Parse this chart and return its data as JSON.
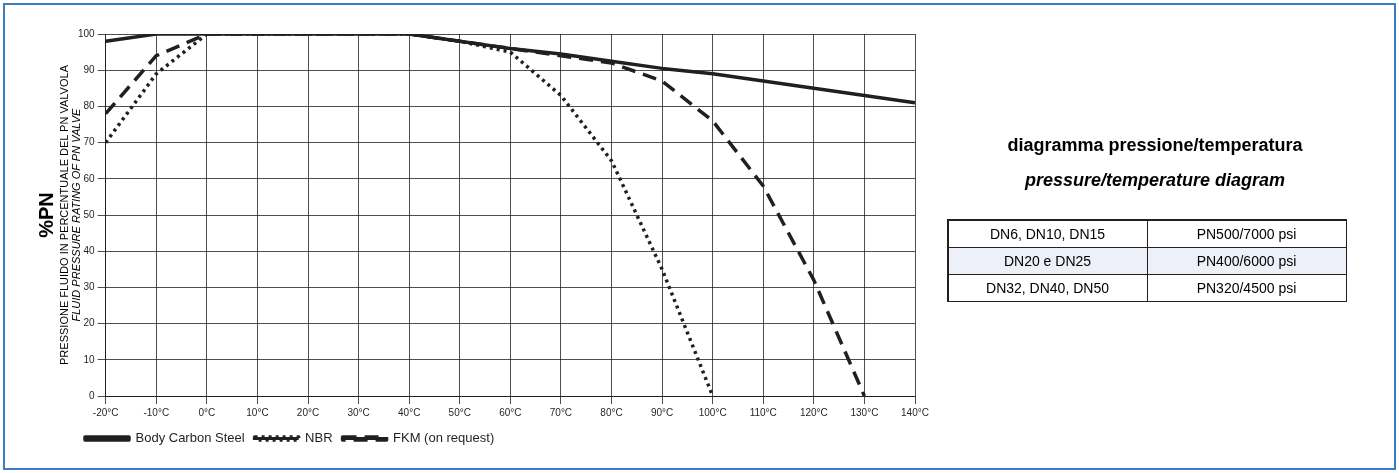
{
  "chart_data": {
    "type": "line",
    "title": "diagramma pressione/temperatura",
    "subtitle": "pressure/temperature diagram",
    "ylabel": "%PN\nPRESSIONE FLUIDO IN PERCENTUALE DEL PN VALVOLA\nFLUID PRESSURE RATING OF PN VALVE",
    "x": [
      -20,
      -10,
      0,
      10,
      20,
      30,
      40,
      50,
      60,
      70,
      80,
      90,
      100,
      110,
      120,
      130,
      140
    ],
    "series": [
      {
        "name": "Body Carbon Steel",
        "color": "#231f20",
        "line_style": "solid",
        "values": [
          98,
          100,
          100,
          100,
          100,
          100,
          100,
          98,
          96,
          94.5,
          92.5,
          90.5,
          89,
          87,
          85,
          83,
          81
        ]
      },
      {
        "name": "NBR",
        "color": "#231f20",
        "line_style": "dotted",
        "values": [
          70,
          89,
          100,
          100,
          100,
          100,
          100,
          98,
          95,
          83,
          65,
          35,
          0,
          null,
          null,
          null,
          null
        ]
      },
      {
        "name": "FKM (on request)",
        "color": "#231f20",
        "line_style": "dashed",
        "values": [
          78,
          94,
          100,
          100,
          100,
          100,
          100,
          98,
          96,
          94,
          92,
          87,
          76,
          58,
          32,
          0,
          null
        ]
      }
    ],
    "xlim": [
      -20,
      140
    ],
    "xticks": [
      {
        "value": -20,
        "label": "-20°C"
      },
      {
        "value": -10,
        "label": "-10°C"
      },
      {
        "value": 0,
        "label": "0°C"
      },
      {
        "value": 10,
        "label": "10°C"
      },
      {
        "value": 20,
        "label": "20°C"
      },
      {
        "value": 30,
        "label": "30°C"
      },
      {
        "value": 40,
        "label": "40°C"
      },
      {
        "value": 50,
        "label": "50°C"
      },
      {
        "value": 60,
        "label": "60°C"
      },
      {
        "value": 70,
        "label": "70°C"
      },
      {
        "value": 80,
        "label": "80°C"
      },
      {
        "value": 90,
        "label": "90°C"
      },
      {
        "value": 100,
        "label": "100°C"
      },
      {
        "value": 110,
        "label": "110°C"
      },
      {
        "value": 120,
        "label": "120°C"
      },
      {
        "value": 130,
        "label": "130°C"
      },
      {
        "value": 140,
        "label": "140°C"
      }
    ],
    "ylim": [
      0,
      100
    ],
    "yticks": [
      0,
      10,
      20,
      30,
      40,
      50,
      60,
      70,
      80,
      90,
      100
    ],
    "grid": true,
    "legend": "bottom left",
    "marker": "none",
    "annotations": [
      "DN6, DN10, DN15",
      "PN500/7000 psi",
      "DN20 e DN25",
      "PN400/6000 psi",
      "DN32, DN40, DN50",
      "PN320/4500 psi"
    ]
  }
}
